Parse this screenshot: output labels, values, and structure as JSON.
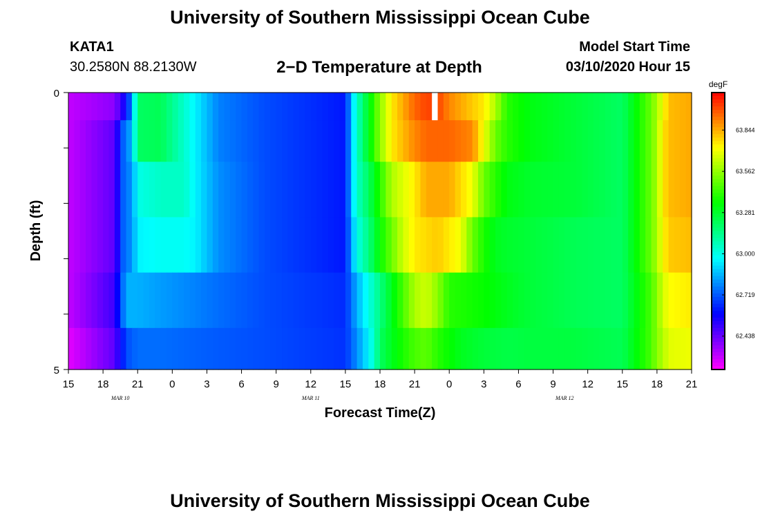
{
  "header": {
    "title": "University of Southern Mississippi Ocean Cube",
    "station_id": "KATA1",
    "station_coords": "30.2580N 88.2130W",
    "plot_title": "2−D Temperature at Depth",
    "model_label": "Model Start Time",
    "model_time": "03/10/2020 Hour 15"
  },
  "footer": {
    "title": "University of Southern Mississippi Ocean Cube"
  },
  "chart_data": {
    "type": "heatmap",
    "title": "2−D Temperature at Depth",
    "xlabel": "Forecast Time(Z)",
    "ylabel": "Depth (ft)",
    "x_tick_labels": [
      "15",
      "18",
      "21",
      "0",
      "3",
      "6",
      "9",
      "12",
      "15",
      "18",
      "21",
      "0",
      "3",
      "6",
      "9",
      "12",
      "15",
      "18",
      "21"
    ],
    "x_hours_since_start": [
      0,
      3,
      6,
      9,
      12,
      15,
      18,
      21,
      24,
      27,
      30,
      33,
      36,
      39,
      42,
      45,
      48,
      51,
      54
    ],
    "date_labels": [
      {
        "label": "MAR  10",
        "hour": 4.5
      },
      {
        "label": "MAR  11",
        "hour": 21
      },
      {
        "label": "MAR  12",
        "hour": 43
      }
    ],
    "y_tick_labels": [
      "0",
      "5"
    ],
    "ylim": [
      0,
      5
    ],
    "xlim": [
      0,
      54
    ],
    "colorbar": {
      "unit": "degF",
      "tick_labels": [
        "63.844",
        "63.562",
        "63.281",
        "63.000",
        "62.719",
        "62.438"
      ],
      "range": [
        62.21,
        64.1
      ]
    },
    "depth_levels": [
      0.25,
      0.75,
      1.75,
      2.75,
      3.75,
      4.75
    ],
    "temperature_profiles": [
      {
        "depth": 0.25,
        "hours": [
          0,
          4,
          5,
          5.5,
          6,
          8,
          11,
          13,
          17,
          24,
          24.6,
          25,
          26,
          27,
          28,
          30,
          31,
          31.5,
          32,
          33,
          35,
          36,
          37,
          37.5,
          38,
          40,
          44,
          48,
          50.5,
          51,
          51.5,
          52,
          54
        ],
        "values": [
          62.3,
          62.38,
          62.6,
          62.8,
          63.2,
          63.22,
          62.95,
          62.78,
          62.7,
          62.62,
          62.9,
          63.05,
          63.3,
          63.55,
          63.75,
          63.95,
          64.0,
          null,
          64.0,
          63.9,
          63.8,
          63.75,
          63.6,
          63.5,
          63.4,
          63.32,
          63.26,
          63.2,
          63.5,
          63.6,
          63.7,
          63.82,
          63.85
        ]
      },
      {
        "depth": 0.75,
        "hours": [
          0,
          4,
          4.8,
          5.5,
          6,
          8,
          11,
          13,
          17,
          24,
          24.6,
          25,
          26,
          27,
          28,
          30,
          31,
          33,
          35,
          36,
          37,
          38,
          40,
          44,
          48,
          50.5,
          51,
          51.5,
          52,
          54
        ],
        "values": [
          62.3,
          62.45,
          62.75,
          62.85,
          63.2,
          63.22,
          62.95,
          62.78,
          62.7,
          62.62,
          62.9,
          63.05,
          63.3,
          63.55,
          63.75,
          63.9,
          63.95,
          63.95,
          63.9,
          63.7,
          63.5,
          63.4,
          63.32,
          63.26,
          63.2,
          63.5,
          63.6,
          63.75,
          63.82,
          63.85
        ]
      },
      {
        "depth": 1.75,
        "hours": [
          0,
          4,
          4.8,
          5.5,
          6,
          8,
          10,
          11,
          13,
          17,
          24,
          24.6,
          25,
          26,
          27,
          28,
          30,
          31,
          33,
          35,
          36,
          37,
          38,
          40,
          44,
          48,
          50.5,
          51,
          51.5,
          52,
          54
        ],
        "values": [
          62.3,
          62.45,
          62.75,
          62.8,
          63.0,
          63.05,
          63.05,
          62.95,
          62.8,
          62.7,
          62.62,
          62.9,
          63.05,
          63.2,
          63.4,
          63.6,
          63.75,
          63.85,
          63.85,
          63.7,
          63.5,
          63.4,
          63.32,
          63.28,
          63.26,
          63.2,
          63.5,
          63.6,
          63.75,
          63.82,
          63.85
        ]
      },
      {
        "depth": 2.75,
        "hours": [
          0,
          4,
          4.8,
          5.5,
          6,
          8,
          10,
          11,
          13,
          17,
          24,
          24.6,
          25,
          26,
          27,
          28,
          29,
          30,
          32,
          34,
          35,
          36,
          37,
          38,
          40,
          44,
          48,
          50.5,
          51,
          51.5,
          52,
          54
        ],
        "values": [
          62.3,
          62.45,
          62.75,
          62.8,
          62.95,
          62.98,
          62.98,
          62.95,
          62.8,
          62.7,
          62.62,
          62.85,
          63.0,
          63.15,
          63.35,
          63.5,
          63.65,
          63.75,
          63.8,
          63.7,
          63.5,
          63.38,
          63.3,
          63.28,
          63.26,
          63.22,
          63.2,
          63.5,
          63.6,
          63.72,
          63.8,
          63.82
        ]
      },
      {
        "depth": 3.75,
        "hours": [
          0,
          4,
          5,
          6,
          8,
          11,
          13,
          17,
          24,
          25,
          26,
          27,
          28,
          29,
          30,
          31,
          32,
          33,
          36,
          38,
          40,
          44,
          48,
          50.5,
          51,
          51.5,
          52,
          54
        ],
        "values": [
          62.3,
          62.5,
          62.85,
          62.85,
          62.82,
          62.78,
          62.75,
          62.7,
          62.65,
          62.85,
          63.0,
          63.15,
          63.3,
          63.45,
          63.6,
          63.65,
          63.55,
          63.4,
          63.35,
          63.3,
          63.26,
          63.22,
          63.2,
          63.45,
          63.55,
          63.65,
          63.72,
          63.75
        ]
      },
      {
        "depth": 4.75,
        "hours": [
          0,
          4,
          5,
          6,
          8,
          13,
          17,
          24,
          25,
          26,
          26.5,
          27,
          28,
          29,
          30,
          31,
          32,
          34,
          36,
          38,
          40,
          44,
          48,
          50.5,
          51,
          51.5,
          52,
          54
        ],
        "values": [
          62.25,
          62.45,
          62.7,
          62.75,
          62.75,
          62.72,
          62.7,
          62.66,
          62.8,
          62.95,
          63.05,
          63.2,
          63.3,
          63.38,
          63.45,
          63.48,
          63.4,
          63.3,
          63.26,
          63.24,
          63.25,
          63.25,
          63.22,
          63.45,
          63.55,
          63.6,
          63.68,
          63.7
        ]
      }
    ]
  }
}
